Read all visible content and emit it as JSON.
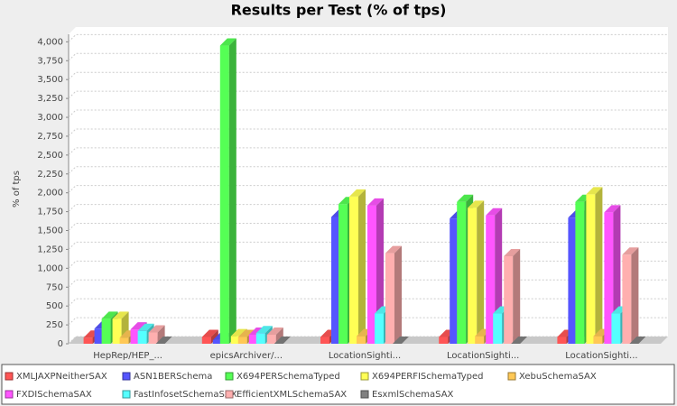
{
  "chart_data": {
    "type": "bar3d",
    "title": "Results per Test (% of tps)",
    "y_label": "% of tps",
    "categories": [
      "HepRep/HEP_...",
      "epicsArchiver/...",
      "LocationSighti...",
      "LocationSighti...",
      "LocationSighti..."
    ],
    "series": [
      {
        "name": "XMLJAXPNeitherSAX",
        "color": "#ff5555",
        "values": [
          80,
          90,
          90,
          90,
          90
        ]
      },
      {
        "name": "ASN1BERSchema",
        "color": "#5555ff",
        "values": [
          200,
          50,
          1680,
          1660,
          1670
        ]
      },
      {
        "name": "X694PERSchemaTyped",
        "color": "#55ff55",
        "values": [
          330,
          3950,
          1850,
          1880,
          1880
        ]
      },
      {
        "name": "X694PERFISchemaTyped",
        "color": "#ffff55",
        "values": [
          330,
          100,
          1950,
          1800,
          1980
        ]
      },
      {
        "name": "XebuSchemaSAX",
        "color": "#ffc855",
        "values": [
          80,
          90,
          100,
          100,
          100
        ]
      },
      {
        "name": "FXDISchemaSAX",
        "color": "#ff55ff",
        "values": [
          190,
          120,
          1830,
          1700,
          1740
        ]
      },
      {
        "name": "FastInfosetSchemaSAX",
        "color": "#55ffff",
        "values": [
          170,
          140,
          400,
          400,
          400
        ]
      },
      {
        "name": "EfficientXMLSchemaSAX",
        "color": "#ffafaf",
        "values": [
          150,
          120,
          1200,
          1160,
          1180
        ]
      },
      {
        "name": "EsxmlSchemaSAX",
        "color": "#808080",
        "values": [
          0,
          0,
          0,
          0,
          0
        ]
      }
    ],
    "ylim": [
      0,
      4100
    ],
    "yticks": [
      0,
      250,
      500,
      750,
      {
        "value": 1000,
        "label": "1,000"
      },
      {
        "value": 1250,
        "label": "1,250"
      },
      {
        "value": 1500,
        "label": "1,500"
      },
      {
        "value": 1750,
        "label": "1,750"
      },
      {
        "value": 2000,
        "label": "2,000"
      },
      {
        "value": 2250,
        "label": "2,250"
      },
      {
        "value": 2500,
        "label": "2,500"
      },
      {
        "value": 2750,
        "label": "2,750"
      },
      {
        "value": 3000,
        "label": "3,000"
      },
      {
        "value": 3250,
        "label": "3,250"
      },
      {
        "value": 3500,
        "label": "3,500"
      },
      {
        "value": 3750,
        "label": "3,750"
      },
      {
        "value": 4000,
        "label": "4,000"
      }
    ],
    "grid": true,
    "legend": "bottom"
  }
}
